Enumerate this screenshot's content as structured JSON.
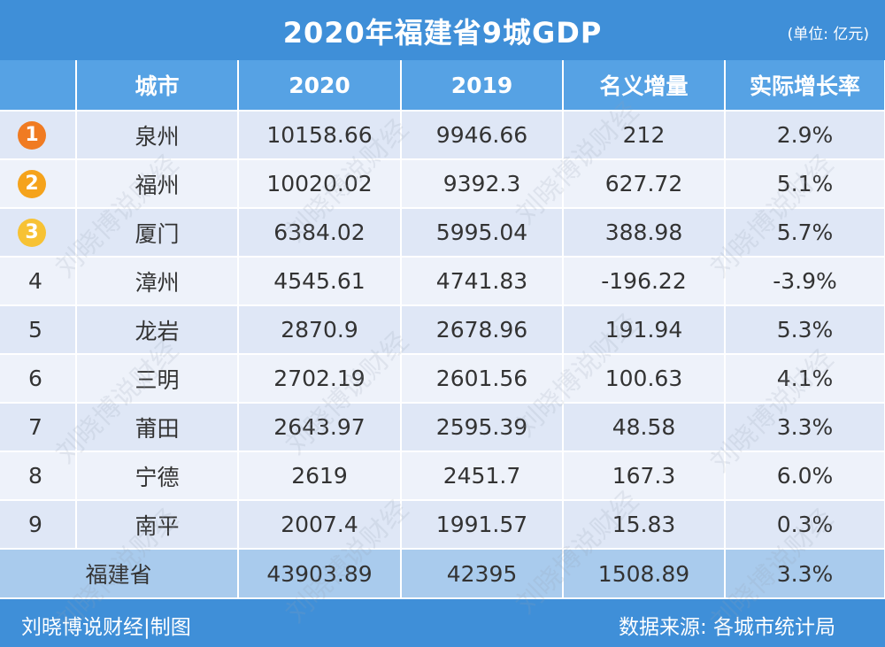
{
  "title": "2020年福建省9城GDP",
  "unit": "(单位: 亿元)",
  "columns": [
    "",
    "城市",
    "2020",
    "2019",
    "名义增量",
    "实际增长率"
  ],
  "badge_colors": [
    "#f07b22",
    "#f5a31c",
    "#f7c234"
  ],
  "rows": [
    {
      "rank": "1",
      "city": "泉州",
      "y2020": "10158.66",
      "y2019": "9946.66",
      "increase": "212",
      "growth": "2.9%"
    },
    {
      "rank": "2",
      "city": "福州",
      "y2020": "10020.02",
      "y2019": "9392.3",
      "increase": "627.72",
      "growth": "5.1%"
    },
    {
      "rank": "3",
      "city": "厦门",
      "y2020": "6384.02",
      "y2019": "5995.04",
      "increase": "388.98",
      "growth": "5.7%"
    },
    {
      "rank": "4",
      "city": "漳州",
      "y2020": "4545.61",
      "y2019": "4741.83",
      "increase": "-196.22",
      "growth": "-3.9%"
    },
    {
      "rank": "5",
      "city": "龙岩",
      "y2020": "2870.9",
      "y2019": "2678.96",
      "increase": "191.94",
      "growth": "5.3%"
    },
    {
      "rank": "6",
      "city": "三明",
      "y2020": "2702.19",
      "y2019": "2601.56",
      "increase": "100.63",
      "growth": "4.1%"
    },
    {
      "rank": "7",
      "city": "莆田",
      "y2020": "2643.97",
      "y2019": "2595.39",
      "increase": "48.58",
      "growth": "3.3%"
    },
    {
      "rank": "8",
      "city": "宁德",
      "y2020": "2619",
      "y2019": "2451.7",
      "increase": "167.3",
      "growth": "6.0%"
    },
    {
      "rank": "9",
      "city": "南平",
      "y2020": "2007.4",
      "y2019": "1991.57",
      "increase": "15.83",
      "growth": "0.3%"
    }
  ],
  "total": {
    "label": "福建省",
    "y2020": "43903.89",
    "y2019": "42395",
    "increase": "1508.89",
    "growth": "3.3%"
  },
  "footer": {
    "credit": "刘晓博说财经|制图",
    "source": "数据来源: 各城市统计局"
  },
  "watermark": "刘晓博说财经"
}
